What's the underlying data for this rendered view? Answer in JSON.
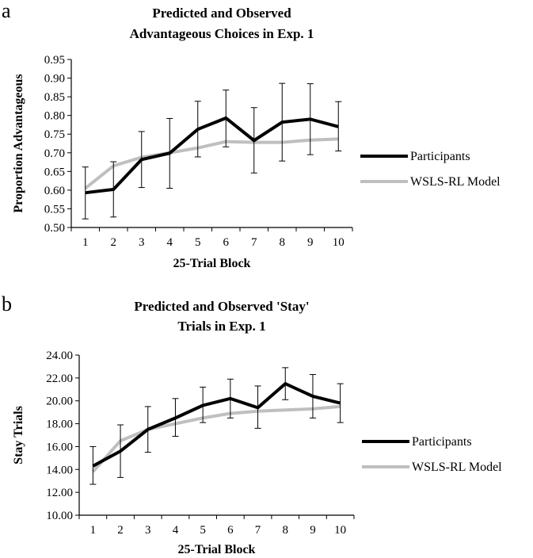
{
  "colors": {
    "participants": "#000000",
    "model": "#bfbfbf",
    "axis": "#000000"
  },
  "chart_data": [
    {
      "panel": "a",
      "type": "line",
      "title_lines": [
        "Predicted and Observed",
        "Advantageous Choices in Exp. 1"
      ],
      "xlabel": "25-Trial Block",
      "ylabel": "Proportion Advantageous",
      "x": [
        1,
        2,
        3,
        4,
        5,
        6,
        7,
        8,
        9,
        10
      ],
      "x_tick_labels": [
        "1",
        "2",
        "3",
        "4",
        "5",
        "6",
        "7",
        "8",
        "9",
        "10"
      ],
      "ylim": [
        0.5,
        0.95
      ],
      "y_ticks": [
        0.5,
        0.55,
        0.6,
        0.65,
        0.7,
        0.75,
        0.8,
        0.85,
        0.9,
        0.95
      ],
      "y_tick_labels": [
        "0.50",
        "0.55",
        "0.60",
        "0.65",
        "0.70",
        "0.75",
        "0.80",
        "0.85",
        "0.90",
        "0.95"
      ],
      "grid": false,
      "legend_position": "right",
      "series": [
        {
          "name": "Participants",
          "color": "#000000",
          "values": [
            0.593,
            0.602,
            0.682,
            0.699,
            0.763,
            0.793,
            0.733,
            0.782,
            0.79,
            0.77
          ],
          "error_low": [
            0.523,
            0.528,
            0.607,
            0.605,
            0.689,
            0.716,
            0.646,
            0.678,
            0.695,
            0.705
          ],
          "error_high": [
            0.662,
            0.676,
            0.757,
            0.792,
            0.838,
            0.868,
            0.821,
            0.886,
            0.885,
            0.837
          ]
        },
        {
          "name": "WSLS-RL Model",
          "color": "#bfbfbf",
          "values": [
            0.605,
            0.665,
            0.688,
            0.7,
            0.713,
            0.73,
            0.728,
            0.728,
            0.734,
            0.737
          ]
        }
      ]
    },
    {
      "panel": "b",
      "type": "line",
      "title_lines": [
        "Predicted and Observed 'Stay'",
        "Trials in Exp. 1"
      ],
      "xlabel": "25-Trial Block",
      "ylabel": "Stay Trials",
      "x": [
        1,
        2,
        3,
        4,
        5,
        6,
        7,
        8,
        9,
        10
      ],
      "x_tick_labels": [
        "1",
        "2",
        "3",
        "4",
        "5",
        "6",
        "7",
        "8",
        "9",
        "10"
      ],
      "ylim": [
        10,
        24
      ],
      "y_ticks": [
        10,
        12,
        14,
        16,
        18,
        20,
        22,
        24
      ],
      "y_tick_labels": [
        "10.00",
        "12.00",
        "14.00",
        "16.00",
        "18.00",
        "20.00",
        "22.00",
        "24.00"
      ],
      "grid": false,
      "legend_position": "right",
      "series": [
        {
          "name": "Participants",
          "color": "#000000",
          "values": [
            14.3,
            15.6,
            17.5,
            18.5,
            19.6,
            20.2,
            19.4,
            21.5,
            20.4,
            19.8
          ],
          "error_low": [
            12.7,
            13.3,
            15.5,
            16.9,
            18.1,
            18.5,
            17.6,
            20.1,
            18.5,
            18.1
          ],
          "error_high": [
            16.0,
            17.9,
            19.5,
            20.2,
            21.2,
            21.9,
            21.3,
            22.9,
            22.3,
            21.5
          ]
        },
        {
          "name": "WSLS-RL Model",
          "color": "#bfbfbf",
          "values": [
            13.8,
            16.5,
            17.5,
            18.0,
            18.5,
            18.9,
            19.1,
            19.2,
            19.3,
            19.5
          ]
        }
      ]
    }
  ]
}
